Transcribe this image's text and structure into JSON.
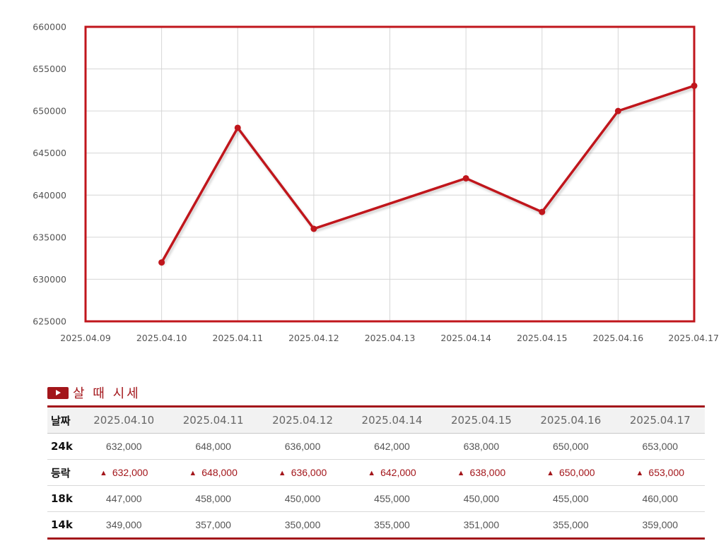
{
  "chart_data": {
    "type": "line",
    "x": [
      "2025.04.10",
      "2025.04.11",
      "2025.04.12",
      "2025.04.14",
      "2025.04.15",
      "2025.04.16",
      "2025.04.17"
    ],
    "x_ticks": [
      "2025.04.09",
      "2025.04.10",
      "2025.04.11",
      "2025.04.12",
      "2025.04.13",
      "2025.04.14",
      "2025.04.15",
      "2025.04.16",
      "2025.04.17"
    ],
    "y_ticks": [
      625000,
      630000,
      635000,
      640000,
      645000,
      650000,
      655000,
      660000
    ],
    "ylim": [
      625000,
      660000
    ],
    "series": [
      {
        "values": [
          632000,
          648000,
          636000,
          642000,
          638000,
          650000,
          653000
        ]
      }
    ],
    "grid": true,
    "colors": {
      "line": "#c0161c",
      "frame": "#c0161c",
      "grid": "#d6d6d6"
    }
  },
  "table": {
    "title": "살 때 시세",
    "header_label": "날짜",
    "dates": [
      "2025.04.10",
      "2025.04.11",
      "2025.04.12",
      "2025.04.14",
      "2025.04.15",
      "2025.04.16",
      "2025.04.17"
    ],
    "rows": [
      {
        "label": "24k",
        "values": [
          "632,000",
          "648,000",
          "636,000",
          "642,000",
          "638,000",
          "650,000",
          "653,000"
        ]
      },
      {
        "label": "등락",
        "change": true,
        "values": [
          "632,000",
          "648,000",
          "636,000",
          "642,000",
          "638,000",
          "650,000",
          "653,000"
        ]
      },
      {
        "label": "18k",
        "values": [
          "447,000",
          "458,000",
          "450,000",
          "455,000",
          "450,000",
          "455,000",
          "460,000"
        ]
      },
      {
        "label": "14k",
        "values": [
          "349,000",
          "357,000",
          "350,000",
          "355,000",
          "351,000",
          "355,000",
          "359,000"
        ]
      }
    ],
    "change_icon": "triangle-up-icon",
    "accent_color": "#a3161b"
  }
}
